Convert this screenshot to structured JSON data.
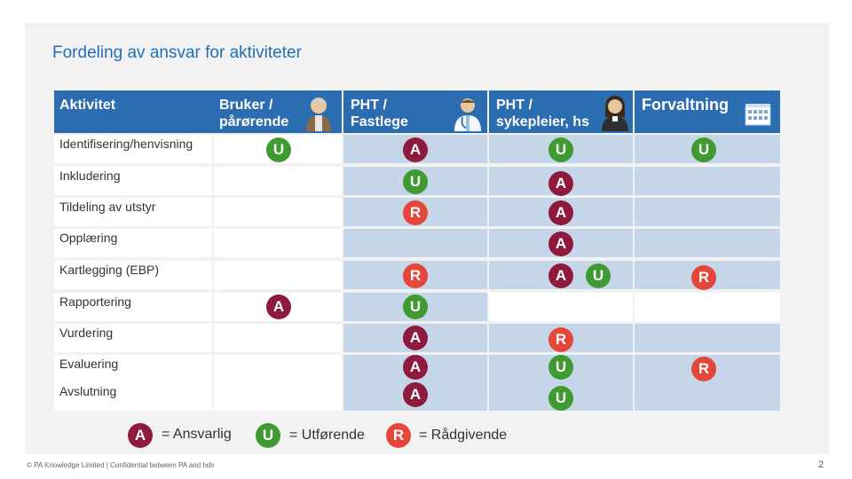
{
  "title": "Fordeling av ansvar for aktiviteter",
  "header": {
    "activity": "Aktivitet",
    "col1": "Bruker /\npårørende",
    "col2": "PHT /\nFastlege",
    "col3": "PHT /\nsykepleier, hs",
    "col4": "Forvaltning"
  },
  "rows": [
    {
      "label": "Identifisering/henvisning"
    },
    {
      "label": "Inkludering"
    },
    {
      "label": "Tildeling av utstyr"
    },
    {
      "label": "Opplæring"
    },
    {
      "label": "Kartlegging (EBP)"
    },
    {
      "label": "Rapportering"
    },
    {
      "label": "Vurdering"
    },
    {
      "label": "Evaluering"
    },
    {
      "label": "Avslutning"
    }
  ],
  "badges": {
    "A": "A",
    "U": "U",
    "R": "R"
  },
  "legend": {
    "a_text": "= Ansvarlig",
    "u_text": "= Utførende",
    "r_text": "= Rådgivende"
  },
  "footer": "© PA Knowledge Limited | Confidential between PA and hdir",
  "page_number": "2",
  "colors": {
    "header_blue": "#2c6cb0",
    "title_blue": "#1f6fb5",
    "cell_blue": "#c5d6e8",
    "ansvarlig": "#8e1b3e",
    "utforende": "#3f9a32",
    "radgivende": "#e4463a"
  }
}
